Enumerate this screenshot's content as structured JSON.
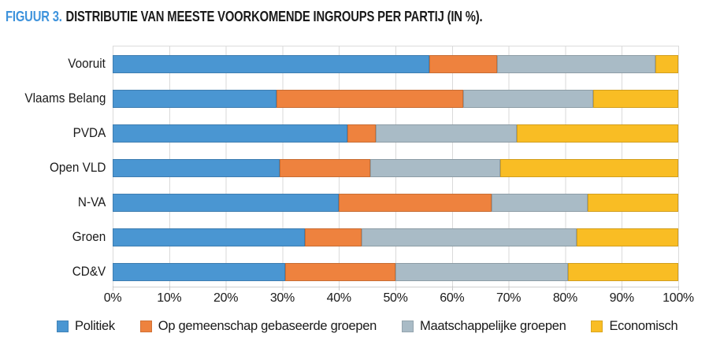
{
  "figure": {
    "title_prefix": "FIGUUR 3.",
    "title_text": "DISTRIBUTIE VAN MEESTE VOORKOMENDE INGROUPS PER PARTIJ (IN %)."
  },
  "colors": {
    "title_prefix": "#3e93dc",
    "text": "#1a1a1a",
    "gridline": "#dadada"
  },
  "chart_data": {
    "type": "bar",
    "variant": "horizontal-stacked",
    "title": "FIGUUR 3. DISTRIBUTIE VAN MEESTE VOORKOMENDE INGROUPS PER PARTIJ (IN %).",
    "unit": "%",
    "xlim": [
      0,
      100
    ],
    "grid": true,
    "legend_position": "bottom",
    "x_ticks": [
      "0%",
      "10%",
      "20%",
      "30%",
      "40%",
      "50%",
      "60%",
      "70%",
      "80%",
      "90%",
      "100%"
    ],
    "categories": [
      "Vooruit",
      "Vlaams Belang",
      "PVDA",
      "Open VLD",
      "N-VA",
      "Groen",
      "CD&V"
    ],
    "series": [
      {
        "name": "Politiek",
        "color": "#4a96d2",
        "values": [
          56,
          29,
          41.5,
          29.5,
          40,
          34,
          30.5
        ]
      },
      {
        "name": "Op gemeenschap gebaseerde groepen",
        "color": "#ee823e",
        "values": [
          12,
          33,
          5,
          16,
          27,
          10,
          19.5
        ]
      },
      {
        "name": "Maatschappelijke groepen",
        "color": "#a9bbc6",
        "values": [
          28,
          23,
          25,
          23,
          17,
          38,
          30.5
        ]
      },
      {
        "name": "Economisch",
        "color": "#f9bd24",
        "values": [
          4,
          15,
          28.5,
          31.5,
          16,
          18,
          19.5
        ]
      }
    ]
  }
}
